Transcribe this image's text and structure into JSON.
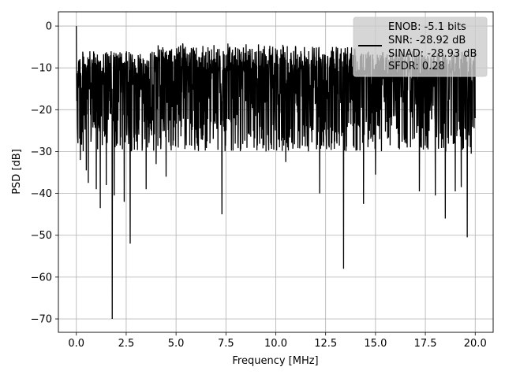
{
  "chart_data": {
    "type": "line",
    "title": "",
    "xlabel": "Frequency [MHz]",
    "ylabel": "PSD [dB]",
    "xlim": [
      -0.9,
      20.9
    ],
    "ylim": [
      -73.2,
      3.4
    ],
    "grid": true,
    "legend_position": "top-right",
    "xticks": [
      0.0,
      2.5,
      5.0,
      7.5,
      10.0,
      12.5,
      15.0,
      17.5,
      20.0
    ],
    "xtick_labels": [
      "0.0",
      "2.5",
      "5.0",
      "7.5",
      "10.0",
      "12.5",
      "15.0",
      "17.5",
      "20.0"
    ],
    "yticks": [
      0,
      -10,
      -20,
      -30,
      -40,
      -50,
      -60,
      -70
    ],
    "ytick_labels": [
      "0",
      "−10",
      "−20",
      "−30",
      "−40",
      "−50",
      "−60",
      "−70"
    ],
    "legend": {
      "lines": [
        "ENOB: -5.1 bits",
        "SNR: -28.92 dB",
        "SINAD: -28.93 dB",
        "SFDR: 0.28"
      ]
    },
    "series": [
      {
        "color": "#000000",
        "x_range": [
          0,
          20
        ],
        "noise_floor_db": -18,
        "upper_envelope_db": -6,
        "lower_envelope_db": -30,
        "points": [
          {
            "x": 0.0,
            "y": 0.0
          },
          {
            "x": 0.04,
            "y": -16.0
          },
          {
            "x": 0.08,
            "y": -28.0
          },
          {
            "x": 0.12,
            "y": -8.5
          },
          {
            "x": 0.2,
            "y": -32.0
          },
          {
            "x": 0.3,
            "y": -12.0
          },
          {
            "x": 0.5,
            "y": -34.5
          },
          {
            "x": 0.6,
            "y": -37.5
          },
          {
            "x": 1.0,
            "y": -39.0
          },
          {
            "x": 1.2,
            "y": -43.5
          },
          {
            "x": 1.5,
            "y": -38.0
          },
          {
            "x": 1.8,
            "y": -70.0
          },
          {
            "x": 1.9,
            "y": -40.5
          },
          {
            "x": 2.4,
            "y": -42.0
          },
          {
            "x": 2.7,
            "y": -52.0
          },
          {
            "x": 3.5,
            "y": -39.0
          },
          {
            "x": 4.0,
            "y": -33.0
          },
          {
            "x": 4.5,
            "y": -36.0
          },
          {
            "x": 7.3,
            "y": -45.0
          },
          {
            "x": 10.5,
            "y": -32.5
          },
          {
            "x": 12.2,
            "y": -40.0
          },
          {
            "x": 13.4,
            "y": -58.0
          },
          {
            "x": 14.4,
            "y": -42.5
          },
          {
            "x": 15.0,
            "y": -35.5
          },
          {
            "x": 17.2,
            "y": -39.5
          },
          {
            "x": 18.0,
            "y": -40.5
          },
          {
            "x": 18.5,
            "y": -46.0
          },
          {
            "x": 19.0,
            "y": -39.5
          },
          {
            "x": 19.3,
            "y": -38.5
          },
          {
            "x": 19.6,
            "y": -50.5
          },
          {
            "x": 19.8,
            "y": -30.5
          },
          {
            "x": 20.0,
            "y": -22.0
          }
        ]
      }
    ]
  }
}
